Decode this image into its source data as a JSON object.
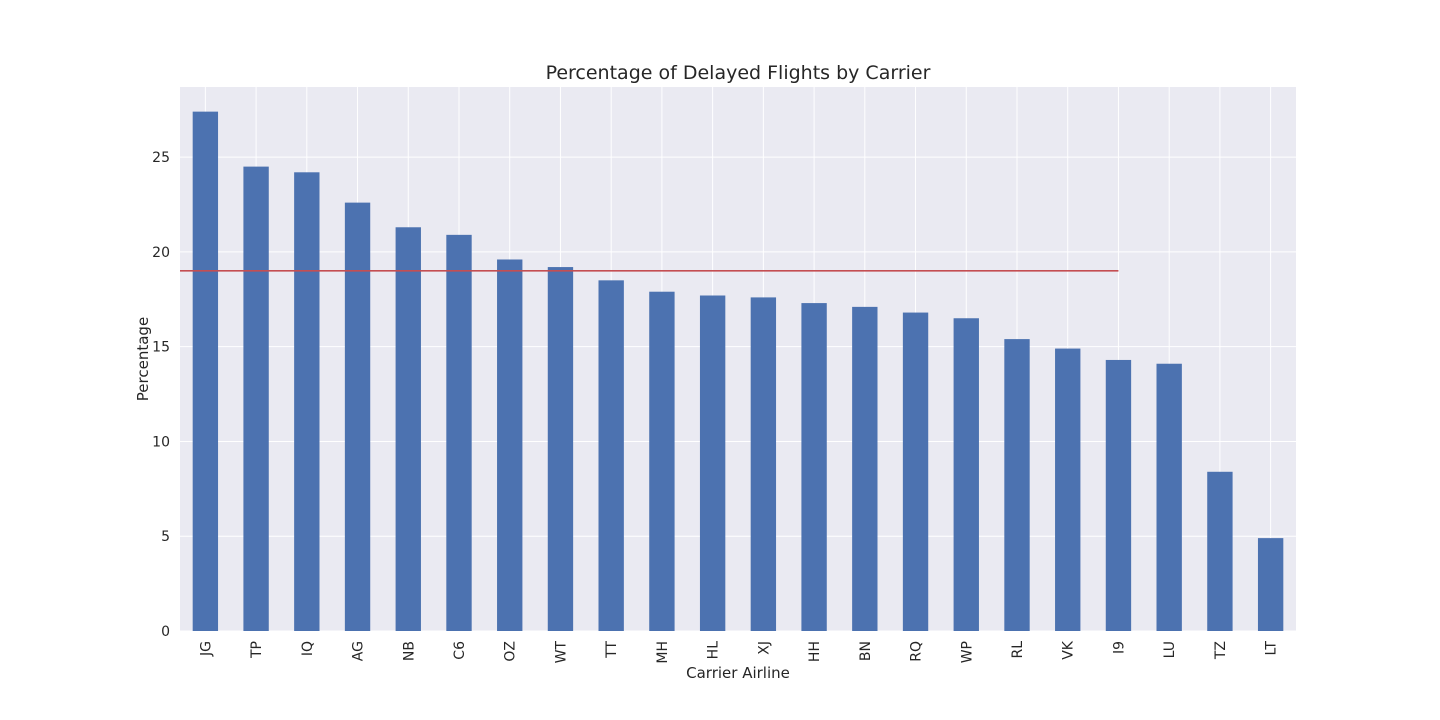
{
  "chart_data": {
    "type": "bar",
    "title": "Percentage of Delayed Flights by Carrier",
    "xlabel": "Carrier Airline",
    "ylabel": "Percentage",
    "categories": [
      "JG",
      "TP",
      "IQ",
      "AG",
      "NB",
      "C6",
      "OZ",
      "WT",
      "TT",
      "MH",
      "HL",
      "XJ",
      "HH",
      "BN",
      "RQ",
      "WP",
      "RL",
      "VK",
      "I9",
      "LU",
      "TZ",
      "LT"
    ],
    "values": [
      27.4,
      24.5,
      24.2,
      22.6,
      21.3,
      20.9,
      19.6,
      19.2,
      18.5,
      17.9,
      17.7,
      17.6,
      17.3,
      17.1,
      16.8,
      16.5,
      15.4,
      14.9,
      14.3,
      14.1,
      8.4,
      4.9
    ],
    "ylim": [
      0,
      28.7
    ],
    "yticks": [
      0,
      5,
      10,
      15,
      20,
      25
    ],
    "reference_line": {
      "value": 19.0,
      "from_category": "JG",
      "to_category": "I9",
      "color": "#c44e52"
    },
    "grid": true,
    "colors": {
      "bar": "#4c72b0",
      "background": "#eaeaf2",
      "grid": "#ffffff",
      "text": "#262626"
    }
  }
}
